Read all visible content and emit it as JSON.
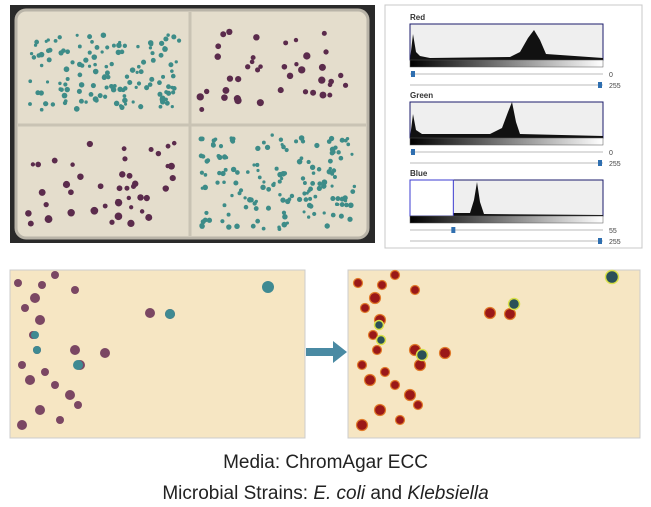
{
  "histograms": [
    {
      "label": "Red",
      "min": 0,
      "max": 255
    },
    {
      "label": "Green",
      "min": 0,
      "max": 255
    },
    {
      "label": "Blue",
      "min": 55,
      "max": 255
    }
  ],
  "caption": {
    "media": "Media: ChromAgar ECC",
    "strains": {
      "prefix": "Microbial Strains:",
      "organism1": "E. coli",
      "conjunction": "and",
      "organism2": "Klebsiella"
    }
  }
}
